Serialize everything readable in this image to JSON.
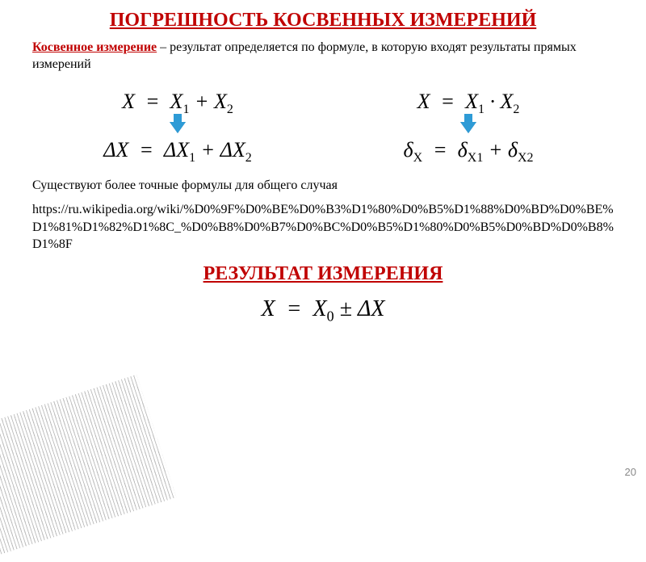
{
  "title": "ПОГРЕШНОСТЬ КОСВЕННЫХ ИЗМЕРЕНИЙ",
  "definition_term": "Косвенное измерение",
  "definition_rest": " – результат определяется по формуле, в которую входят результаты прямых измерений",
  "left": {
    "top": "X = X₁ + X₂",
    "bottom": "ΔX = ΔX₁ + ΔX₂"
  },
  "right": {
    "top": "X = X₁ · X₂",
    "bottom": "δ"
  },
  "note": "Существуют более точные формулы для общего случая",
  "url": "https://ru.wikipedia.org/wiki/%D0%9F%D0%BE%D0%B3%D1%80%D0%B5%D1%88%D0%BD%D0%BE%D1%81%D1%82%D1%8C_%D0%B8%D0%B7%D0%BC%D0%B5%D1%80%D0%B5%D0%BD%D0%B8%D1%8F",
  "subtitle": "РЕЗУЛЬТАТ ИЗМЕРЕНИЯ",
  "final": "X = X₀ ± ΔX",
  "pagenum": "20",
  "colors": {
    "accent": "#c00000",
    "arrow": "#2e9bd6",
    "text": "#000000",
    "bg": "#ffffff"
  }
}
